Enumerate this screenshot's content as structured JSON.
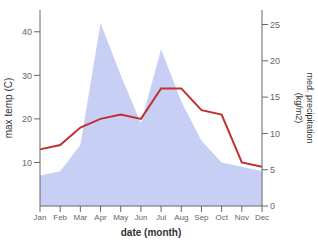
{
  "chart_data": {
    "type": "line",
    "xlabel": "date (month)",
    "ylabel": "max temp (C)",
    "y2label": "med. precipitation\n(kg/m2)",
    "categories": [
      "Jan",
      "Feb",
      "Mar",
      "Apr",
      "May",
      "Jun",
      "Jul",
      "Aug",
      "Sep",
      "Oct",
      "Nov",
      "Dec"
    ],
    "series": [
      {
        "type": "area",
        "color": "#c8cff5",
        "values": [
          7,
          8,
          14,
          42,
          30,
          19,
          36,
          24,
          15,
          10,
          9,
          8
        ]
      },
      {
        "type": "line",
        "color": "#c03030",
        "values": [
          13,
          14,
          18,
          20,
          21,
          20,
          27,
          27,
          22,
          21,
          10,
          9
        ]
      }
    ],
    "ylim": [
      0,
      45
    ],
    "yticks": [
      10,
      20,
      30,
      40
    ],
    "y2lim": [
      0,
      27
    ],
    "y2ticks": [
      0,
      5,
      10,
      15,
      20,
      25
    ],
    "grid": false
  }
}
